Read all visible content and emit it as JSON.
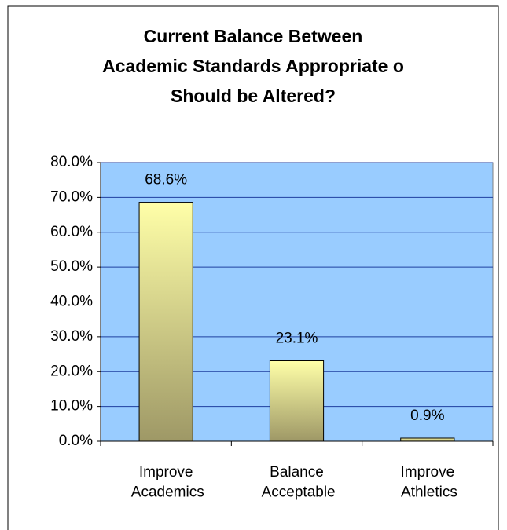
{
  "chart_data": {
    "type": "bar",
    "title": [
      "Current Balance Between",
      "Academic Standards Appropriate o",
      "Should be Altered?"
    ],
    "categories": [
      "Improve Academics",
      "Balance Acceptable",
      "Improve Athletics"
    ],
    "values": [
      68.6,
      23.1,
      0.9
    ],
    "value_labels": [
      "68.6%",
      "23.1%",
      "0.9%"
    ],
    "color": "#ffff99",
    "ylim": [
      0,
      80
    ],
    "yticks": [
      {
        "value": 0,
        "label": "0.0%"
      },
      {
        "value": 10,
        "label": "10.0%"
      },
      {
        "value": 20,
        "label": "20.0%"
      },
      {
        "value": 30,
        "label": "30.0%"
      },
      {
        "value": 40,
        "label": "40.0%"
      },
      {
        "value": 50,
        "label": "50.0%"
      },
      {
        "value": 60,
        "label": "60.0%"
      },
      {
        "value": 70,
        "label": "70.0%"
      },
      {
        "value": 80,
        "label": "80.0%"
      }
    ],
    "grid": true
  }
}
